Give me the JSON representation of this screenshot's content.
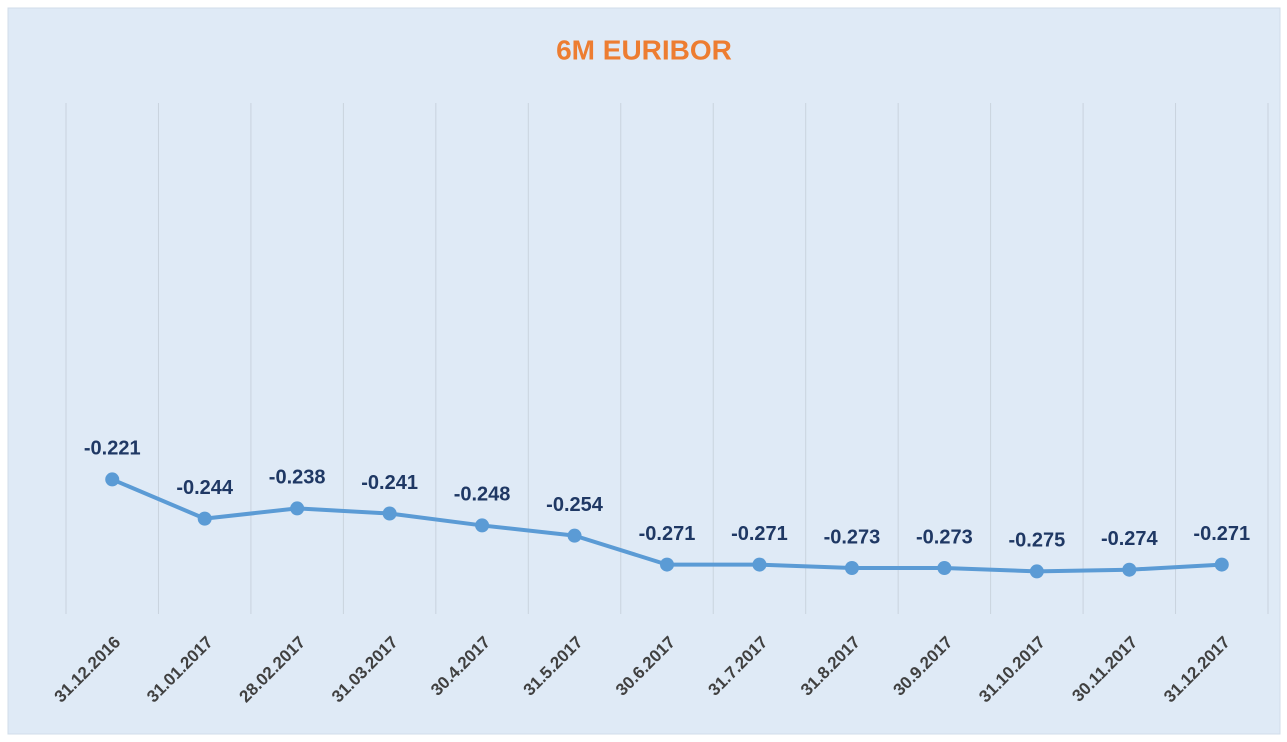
{
  "chart_data": {
    "type": "line",
    "title": "6M EURIBOR",
    "categories": [
      "31.12.2016",
      "31.01.2017",
      "28.02.2017",
      "31.03.2017",
      "30.4.2017",
      "31.5.2017",
      "30.6.2017",
      "31.7.2017",
      "31.8.2017",
      "30.9.2017",
      "31.10.2017",
      "30.11.2017",
      "31.12.2017"
    ],
    "series": [
      {
        "name": "6M EURIBOR",
        "color": "#5b9bd5",
        "values": [
          -0.221,
          -0.244,
          -0.238,
          -0.241,
          -0.248,
          -0.254,
          -0.271,
          -0.271,
          -0.273,
          -0.273,
          -0.275,
          -0.274,
          -0.271
        ]
      }
    ],
    "ylim": [
      -0.3,
      0
    ],
    "grid": true
  }
}
